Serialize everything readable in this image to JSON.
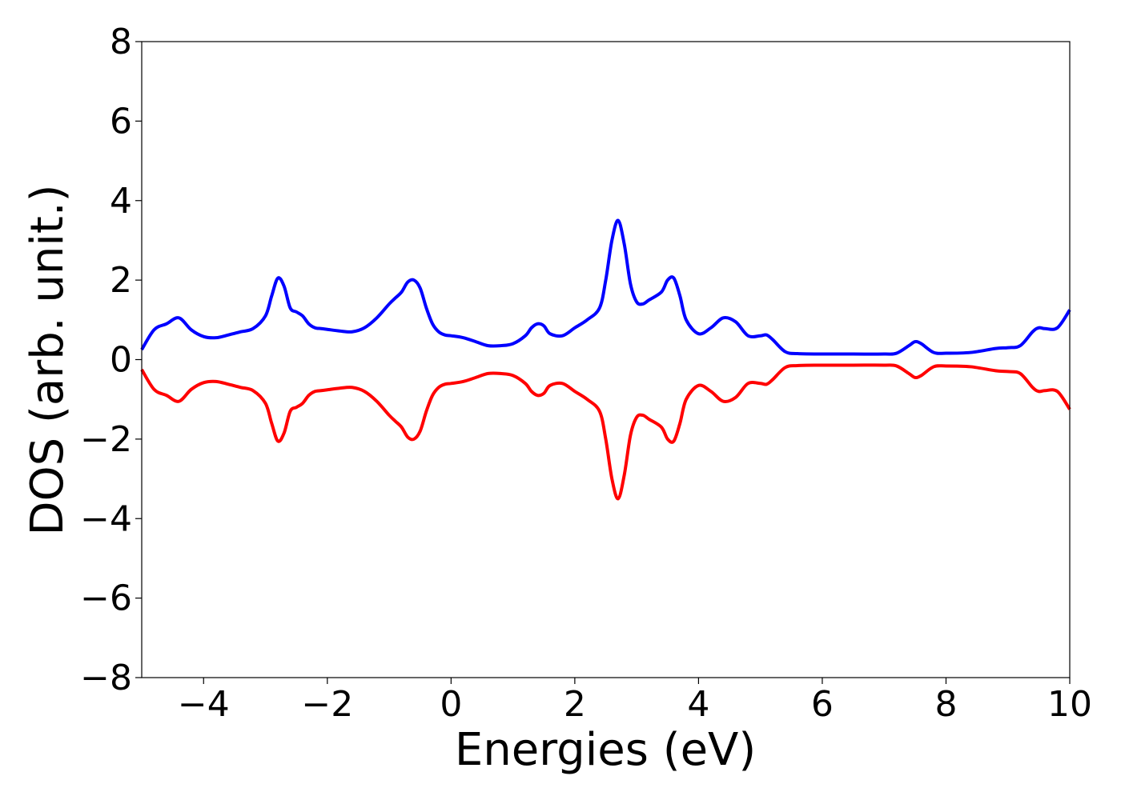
{
  "chart_data": {
    "type": "line",
    "title": "",
    "xlabel": "Energies (eV)",
    "ylabel": "DOS (arb. unit.)",
    "xlim": [
      -5,
      10
    ],
    "ylim": [
      -8,
      8
    ],
    "xticks": [
      -4,
      -2,
      0,
      2,
      4,
      6,
      8,
      10
    ],
    "xtick_labels": [
      "−4",
      "−2",
      "0",
      "2",
      "4",
      "6",
      "8",
      "10"
    ],
    "yticks": [
      -8,
      -6,
      -4,
      -2,
      0,
      2,
      4,
      6,
      8
    ],
    "ytick_labels": [
      "−8",
      "−6",
      "−4",
      "−2",
      "0",
      "2",
      "4",
      "6",
      "8"
    ],
    "grid": false,
    "legend": "none",
    "x": [
      -5.0,
      -4.8,
      -4.6,
      -4.4,
      -4.2,
      -4.0,
      -3.8,
      -3.6,
      -3.4,
      -3.2,
      -3.0,
      -2.9,
      -2.8,
      -2.7,
      -2.6,
      -2.5,
      -2.4,
      -2.3,
      -2.2,
      -2.1,
      -2.0,
      -1.8,
      -1.6,
      -1.4,
      -1.2,
      -1.0,
      -0.9,
      -0.8,
      -0.7,
      -0.6,
      -0.5,
      -0.4,
      -0.3,
      -0.2,
      -0.1,
      0.0,
      0.2,
      0.4,
      0.6,
      0.8,
      1.0,
      1.2,
      1.3,
      1.4,
      1.5,
      1.6,
      1.8,
      2.0,
      2.2,
      2.4,
      2.5,
      2.6,
      2.7,
      2.8,
      2.9,
      3.0,
      3.1,
      3.2,
      3.4,
      3.5,
      3.6,
      3.7,
      3.8,
      4.0,
      4.2,
      4.4,
      4.6,
      4.8,
      5.0,
      5.1,
      5.2,
      5.4,
      5.6,
      6.0,
      6.5,
      7.0,
      7.2,
      7.4,
      7.5,
      7.6,
      7.8,
      8.0,
      8.4,
      8.8,
      9.0,
      9.2,
      9.4,
      9.5,
      9.6,
      9.8,
      10.0
    ],
    "series": [
      {
        "color": "#0000ff",
        "values": [
          0.25,
          0.75,
          0.9,
          1.05,
          0.75,
          0.58,
          0.55,
          0.62,
          0.7,
          0.78,
          1.1,
          1.6,
          2.05,
          1.85,
          1.3,
          1.2,
          1.1,
          0.9,
          0.8,
          0.78,
          0.76,
          0.72,
          0.7,
          0.8,
          1.05,
          1.4,
          1.55,
          1.7,
          1.95,
          2.0,
          1.8,
          1.3,
          0.9,
          0.7,
          0.62,
          0.6,
          0.55,
          0.45,
          0.35,
          0.35,
          0.4,
          0.6,
          0.8,
          0.9,
          0.85,
          0.65,
          0.6,
          0.8,
          1.0,
          1.3,
          2.0,
          3.0,
          3.5,
          2.9,
          1.9,
          1.45,
          1.4,
          1.5,
          1.7,
          2.0,
          2.05,
          1.6,
          1.0,
          0.65,
          0.8,
          1.05,
          0.95,
          0.6,
          0.6,
          0.62,
          0.5,
          0.2,
          0.15,
          0.14,
          0.14,
          0.14,
          0.16,
          0.35,
          0.45,
          0.4,
          0.18,
          0.16,
          0.18,
          0.28,
          0.3,
          0.35,
          0.7,
          0.8,
          0.78,
          0.8,
          1.25
        ]
      },
      {
        "color": "#ff0000",
        "values": [
          -0.25,
          -0.75,
          -0.9,
          -1.05,
          -0.75,
          -0.58,
          -0.55,
          -0.62,
          -0.7,
          -0.78,
          -1.1,
          -1.6,
          -2.05,
          -1.85,
          -1.3,
          -1.2,
          -1.1,
          -0.9,
          -0.8,
          -0.78,
          -0.76,
          -0.72,
          -0.7,
          -0.8,
          -1.05,
          -1.4,
          -1.55,
          -1.7,
          -1.95,
          -2.0,
          -1.8,
          -1.3,
          -0.9,
          -0.7,
          -0.62,
          -0.6,
          -0.55,
          -0.45,
          -0.35,
          -0.35,
          -0.4,
          -0.6,
          -0.8,
          -0.9,
          -0.85,
          -0.65,
          -0.6,
          -0.8,
          -1.0,
          -1.3,
          -2.0,
          -3.0,
          -3.5,
          -2.9,
          -1.9,
          -1.45,
          -1.4,
          -1.5,
          -1.7,
          -2.0,
          -2.05,
          -1.6,
          -1.0,
          -0.65,
          -0.8,
          -1.05,
          -0.95,
          -0.6,
          -0.6,
          -0.62,
          -0.5,
          -0.2,
          -0.15,
          -0.14,
          -0.14,
          -0.14,
          -0.16,
          -0.35,
          -0.45,
          -0.4,
          -0.18,
          -0.16,
          -0.18,
          -0.28,
          -0.3,
          -0.35,
          -0.7,
          -0.8,
          -0.78,
          -0.8,
          -1.25
        ]
      }
    ]
  }
}
